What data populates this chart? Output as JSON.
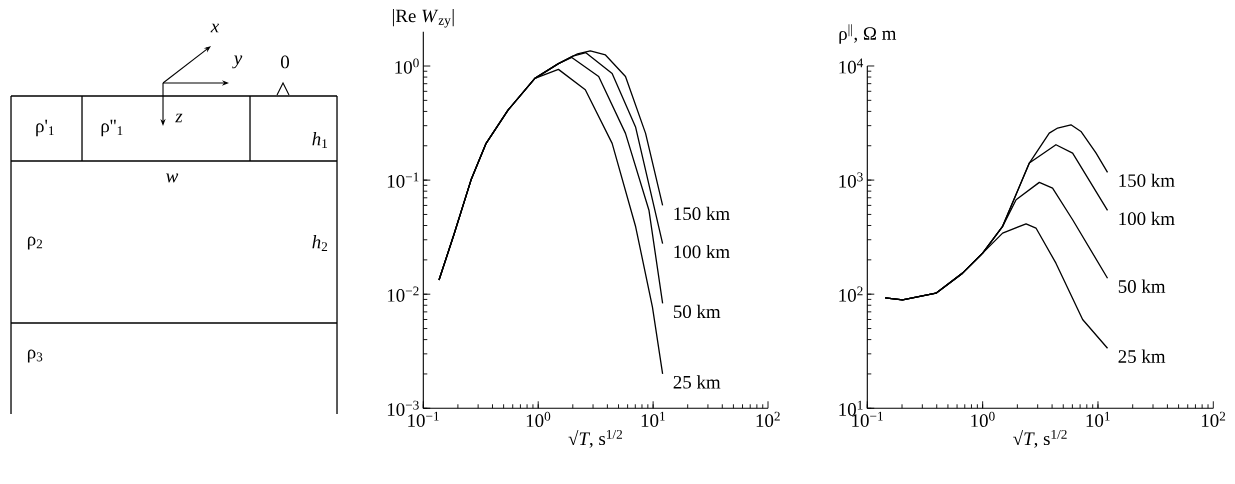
{
  "chart_data": [
    {
      "type": "other",
      "annotations": [
        "x",
        "y",
        "0",
        "z",
        "ρ'$_{1}$",
        "ρ''$_{1}$",
        "*h*$_{1}$",
        "*w*",
        "ρ$_{2}$",
        "*h*$_{2}$",
        "ρ$_{3}$"
      ]
    },
    {
      "type": "line",
      "xlabel": "√*T*, s$^{1/2}$",
      "ylabel": "|Re *W*$_{zy}$|",
      "log": "xy",
      "marker": "none",
      "line_style": "solid",
      "xlim": [
        0.1,
        100
      ],
      "ylim": [
        0.001,
        2
      ],
      "xticks": [
        {
          "value": 0.1,
          "label": "10$^{−1}$"
        },
        {
          "value": 1,
          "label": "10$^{0}$"
        },
        {
          "value": 10,
          "label": "10$^{1}$"
        },
        {
          "value": 100,
          "label": "10$^{2}$"
        }
      ],
      "yticks": [
        {
          "value": 0.001,
          "label": "10$^{−3}$"
        },
        {
          "value": 0.01,
          "label": "10$^{−2}$"
        },
        {
          "value": 0.1,
          "label": "10$^{−1}$"
        },
        {
          "value": 1,
          "label": "10$^{0}$"
        }
      ],
      "series": [
        {
          "name": "150 km",
          "color": "#000000",
          "x": [
            0.137,
            0.186,
            0.26,
            0.352,
            0.546,
            0.935,
            1.5,
            2.2,
            2.84,
            3.85,
            5.75,
            8.6,
            12.1
          ],
          "values": [
            0.0133,
            0.034,
            0.1,
            0.21,
            0.41,
            0.78,
            1.05,
            1.28,
            1.36,
            1.25,
            0.81,
            0.257,
            0.06
          ]
        },
        {
          "name": "100 km",
          "color": "#000000",
          "x": [
            0.137,
            0.186,
            0.26,
            0.352,
            0.546,
            0.935,
            1.5,
            2.0,
            2.6,
            4.4,
            7.05,
            12.1
          ],
          "values": [
            0.0133,
            0.034,
            0.1,
            0.21,
            0.41,
            0.78,
            1.05,
            1.22,
            1.31,
            0.86,
            0.29,
            0.0278
          ]
        },
        {
          "name": "50 km",
          "color": "#000000",
          "x": [
            0.137,
            0.186,
            0.26,
            0.352,
            0.546,
            0.935,
            1.5,
            1.96,
            3.36,
            5.75,
            9.2,
            12.1
          ],
          "values": [
            0.0133,
            0.034,
            0.1,
            0.21,
            0.41,
            0.78,
            1.05,
            1.19,
            0.81,
            0.257,
            0.0545,
            0.0083
          ]
        },
        {
          "name": "25 km",
          "color": "#000000",
          "x": [
            0.137,
            0.186,
            0.26,
            0.352,
            0.546,
            0.935,
            1.5,
            2.57,
            4.4,
            7.05,
            9.87,
            12.1
          ],
          "values": [
            0.0133,
            0.034,
            0.1,
            0.21,
            0.41,
            0.78,
            0.935,
            0.62,
            0.21,
            0.039,
            0.0077,
            0.002
          ]
        }
      ]
    },
    {
      "type": "line",
      "xlabel": "√*T*, s$^{1/2}$",
      "ylabel": "ρ$^{||}$,  Ω m",
      "log": "xy",
      "marker": "none",
      "line_style": "solid",
      "xlim": [
        0.1,
        100
      ],
      "ylim": [
        10,
        10000
      ],
      "xticks": [
        {
          "value": 0.1,
          "label": "10$^{−1}$"
        },
        {
          "value": 1,
          "label": "10$^{0}$"
        },
        {
          "value": 10,
          "label": "10$^{1}$"
        },
        {
          "value": 100,
          "label": "10$^{2}$"
        }
      ],
      "yticks": [
        {
          "value": 10,
          "label": "10$^{1}$"
        },
        {
          "value": 100,
          "label": "10$^{2}$"
        },
        {
          "value": 1000,
          "label": "10$^{3}$"
        },
        {
          "value": 10000,
          "label": "10$^{4}$"
        }
      ],
      "series": [
        {
          "name": "150 km",
          "color": "#000000",
          "x": [
            0.143,
            0.202,
            0.394,
            0.67,
            1.0,
            1.49,
            2.54,
            3.78,
            4.47,
            5.83,
            7.12,
            9.6,
            12.1
          ],
          "values": [
            93,
            89,
            102,
            153,
            229,
            393,
            1410,
            2580,
            2860,
            3050,
            2670,
            1730,
            1170
          ]
        },
        {
          "name": "100 km",
          "color": "#000000",
          "x": [
            0.143,
            0.202,
            0.394,
            0.67,
            1.0,
            1.49,
            2.54,
            4.32,
            6.03,
            12.1
          ],
          "values": [
            93,
            89,
            102,
            153,
            229,
            393,
            1410,
            2040,
            1725,
            542
          ]
        },
        {
          "name": "50 km",
          "color": "#000000",
          "x": [
            0.143,
            0.202,
            0.394,
            0.67,
            1.0,
            1.49,
            1.95,
            3.1,
            4.04,
            6.03,
            12.1
          ],
          "values": [
            93,
            89,
            102,
            153,
            229,
            393,
            672,
            955,
            851,
            449,
            138
          ]
        },
        {
          "name": "25 km",
          "color": "#000000",
          "x": [
            0.143,
            0.202,
            0.394,
            0.67,
            1.0,
            1.49,
            2.38,
            2.9,
            4.32,
            7.36,
            12.1
          ],
          "values": [
            93,
            89,
            102,
            153,
            229,
            343,
            414,
            380,
            187,
            60,
            33.6
          ]
        }
      ]
    }
  ]
}
